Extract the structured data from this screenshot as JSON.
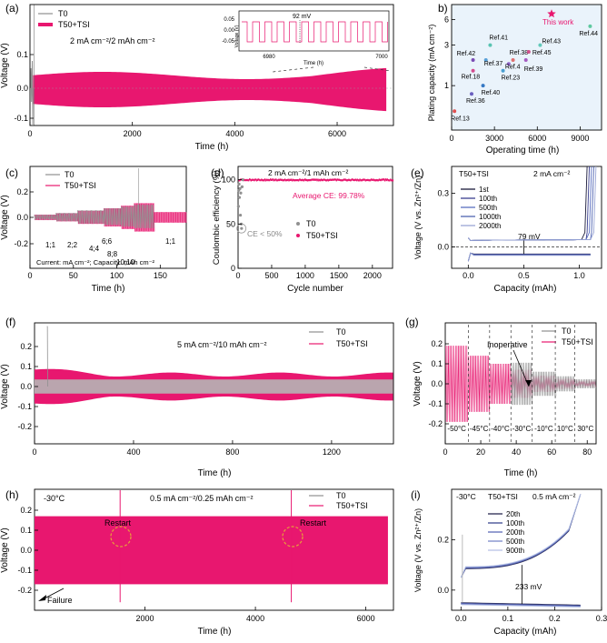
{
  "chart_data": [
    {
      "panel": "a",
      "type": "line",
      "label": "(a)",
      "condition": "2 mA cm⁻²/2 mAh cm⁻²",
      "xlabel": "Time (h)",
      "ylabel": "Voltage (V)",
      "xlim": [
        0,
        7100
      ],
      "ylim": [
        -0.17,
        0.22
      ],
      "xticks": [
        "0",
        "2000",
        "4000",
        "6000"
      ],
      "yticks": [
        "-0.1",
        "0.0",
        "0.1"
      ],
      "series": [
        {
          "name": "T0",
          "color": "#909090",
          "end_h": 60
        },
        {
          "name": "T50+TSI",
          "color": "#e8176f",
          "end_h": 7000,
          "amplitude": [
            0.025,
            0.045
          ]
        }
      ],
      "inset": {
        "xlabel": "Time (h)",
        "ylabel": "Voltage (V)",
        "xticks": [
          "6980",
          "7000"
        ],
        "yticks": [
          "0.05",
          "0.00",
          "-0.05"
        ],
        "annotation": "92 mV"
      }
    },
    {
      "panel": "b",
      "type": "scatter",
      "label": "b)",
      "xlabel": "Operating time (h)",
      "ylabel": "Plating capacity (mA cm⁻²)",
      "xticks": [
        "0",
        "3000",
        "6000",
        "9000"
      ],
      "yticks": [
        "1",
        "3",
        "6"
      ],
      "points": [
        {
          "name": "Ref.13",
          "x": 200,
          "y": 0.5
        },
        {
          "name": "Ref.42",
          "x": 1500,
          "y": 2.0
        },
        {
          "name": "Ref.37",
          "x": 2400,
          "y": 2.0
        },
        {
          "name": "Ref.41",
          "x": 2700,
          "y": 3.0
        },
        {
          "name": "Ref.18",
          "x": 1500,
          "y": 1.5
        },
        {
          "name": "Ref.40",
          "x": 2200,
          "y": 1.0
        },
        {
          "name": "Ref.36",
          "x": 1400,
          "y": 0.8
        },
        {
          "name": "Ref.38",
          "x": 4300,
          "y": 2.0
        },
        {
          "name": "Ref.4",
          "x": 4000,
          "y": 1.8
        },
        {
          "name": "Ref.23",
          "x": 3600,
          "y": 1.5
        },
        {
          "name": "Ref.45",
          "x": 5400,
          "y": 2.5
        },
        {
          "name": "Ref.39",
          "x": 5200,
          "y": 2.0
        },
        {
          "name": "Ref.43",
          "x": 6200,
          "y": 3.0
        },
        {
          "name": "Ref.44",
          "x": 9700,
          "y": 5.0
        },
        {
          "name": "This work",
          "x": 7000,
          "y": 7.0
        }
      ]
    },
    {
      "panel": "c",
      "type": "line",
      "label": "(c)",
      "xlabel": "Time (h)",
      "ylabel": "Voltage (V)",
      "xticks": [
        "0",
        "50",
        "100",
        "150"
      ],
      "yticks": [
        "-0.2",
        "0.0",
        "0.2"
      ],
      "series": [
        {
          "name": "T0",
          "color": "#909090"
        },
        {
          "name": "T50+TSI",
          "color": "#e8176f"
        }
      ],
      "rate_labels": [
        "1;1",
        "2;2",
        "4;4",
        "6;6",
        "8;8",
        "10;10",
        "1;1"
      ],
      "note": "Current: mA cm⁻²; Capacity: mAh cm⁻²"
    },
    {
      "panel": "d",
      "type": "scatter",
      "label": "(d)",
      "condition": "2 mA cm⁻²/1 mAh cm⁻²",
      "xlabel": "Cycle number",
      "ylabel": "Coulombic efficiency (%)",
      "xticks": [
        "0",
        "500",
        "1000",
        "1500",
        "2000"
      ],
      "yticks": [
        "0",
        "50",
        "100"
      ],
      "series": [
        {
          "name": "T0",
          "color": "#909090"
        },
        {
          "name": "T50+TSI",
          "color": "#e8176f",
          "value": 99.78
        }
      ],
      "annotations": [
        "Average CE: 99.78%",
        "CE < 50%"
      ]
    },
    {
      "panel": "e",
      "type": "line",
      "label": "(e)",
      "title": "T50+TSI",
      "condition": "2 mA cm⁻²",
      "xlabel": "Capacity (mAh)",
      "ylabel": "Voltage (V vs. Zn²⁺/Zn)",
      "xticks": [
        "0.0",
        "0.5",
        "1.0"
      ],
      "yticks": [
        "0.0",
        "0.3"
      ],
      "series": [
        "1st",
        "100th",
        "500th",
        "1000th",
        "2000th"
      ],
      "annotation": "79 mV"
    },
    {
      "panel": "f",
      "type": "line",
      "label": "(f)",
      "condition": "5 mA cm⁻²/10 mAh cm⁻²",
      "xlabel": "Time (h)",
      "ylabel": "Voltage (V)",
      "xticks": [
        "0",
        "400",
        "800",
        "1200"
      ],
      "yticks": [
        "-0.2",
        "-0.1",
        "0.0",
        "0.1",
        "0.2"
      ],
      "series": [
        {
          "name": "T0",
          "color": "#909090"
        },
        {
          "name": "T50+TSI",
          "color": "#e8176f"
        }
      ]
    },
    {
      "panel": "g",
      "type": "line",
      "label": "(g)",
      "xlabel": "Time (h)",
      "ylabel": "Voltage (V)",
      "xticks": [
        "0",
        "20",
        "40",
        "60",
        "80"
      ],
      "yticks": [
        "-0.2",
        "-0.1",
        "0.0",
        "0.1",
        "0.2"
      ],
      "series": [
        {
          "name": "T0",
          "color": "#909090"
        },
        {
          "name": "T50+TSI",
          "color": "#e8176f"
        }
      ],
      "temperatures": [
        "-50°C",
        "-45°C",
        "-40°C",
        "-30°C",
        "-10°C",
        "10°C",
        "30°C"
      ],
      "annotation": "Inoperative"
    },
    {
      "panel": "h",
      "type": "line",
      "label": "(h)",
      "temperature": "-30°C",
      "condition": "0.5 mA cm⁻²/0.25 mAh cm⁻²",
      "xlabel": "Time (h)",
      "ylabel": "Voltage (V)",
      "xticks": [
        "2000",
        "4000",
        "6000"
      ],
      "yticks": [
        "-0.2",
        "-0.1",
        "0.0",
        "0.1",
        "0.2"
      ],
      "series": [
        {
          "name": "T0",
          "color": "#909090"
        },
        {
          "name": "T50+TSI",
          "color": "#e8176f"
        }
      ],
      "annotations": [
        "Restart",
        "Restart",
        "Failure"
      ]
    },
    {
      "panel": "i",
      "type": "line",
      "label": "(i)",
      "temperature": "-30°C",
      "title": "T50+TSI",
      "condition": "0.5 mA cm⁻²",
      "xlabel": "Capacity (mAh)",
      "ylabel": "Voltage (V vs. Zn²⁺/Zn)",
      "xticks": [
        "0.0",
        "0.1",
        "0.2",
        "0.3"
      ],
      "yticks": [
        "0.0",
        "0.2"
      ],
      "series": [
        "20th",
        "100th",
        "200th",
        "500th",
        "900th"
      ],
      "annotation": "233 mV"
    }
  ]
}
